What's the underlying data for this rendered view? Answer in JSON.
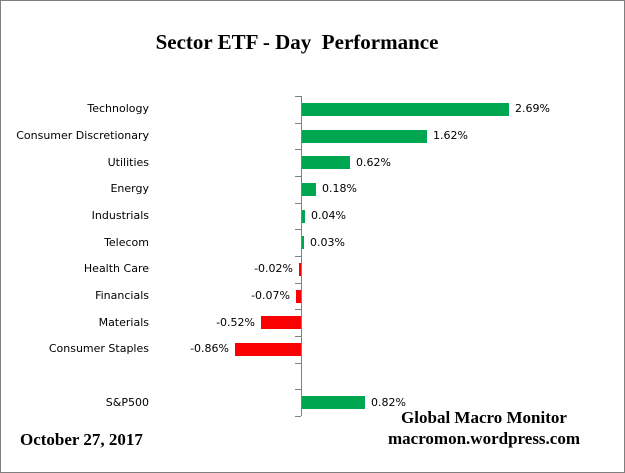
{
  "page": {
    "background": "#ffffff",
    "border_color": "#7f7f7f"
  },
  "chart_data": {
    "type": "bar",
    "orientation": "horizontal",
    "title": "Sector ETF - Day  Performance",
    "categories": [
      "Technology",
      "Consumer Discretionary",
      "Utilities",
      "Energy",
      "Industrials",
      "Telecom",
      "Health Care",
      "Financials",
      "Materials",
      "Consumer Staples",
      "",
      "S&P500"
    ],
    "values": [
      2.69,
      1.62,
      0.62,
      0.18,
      0.04,
      0.03,
      -0.02,
      -0.07,
      -0.52,
      -0.86,
      null,
      0.82
    ],
    "value_labels": [
      "2.69%",
      "1.62%",
      "0.62%",
      "0.18%",
      "0.04%",
      "0.03%",
      "-0.02%",
      "-0.07%",
      "-0.52%",
      "-0.86%",
      "",
      "0.82%"
    ],
    "xlabel": "",
    "ylabel": "",
    "x_axis_visible": false,
    "gridlines": false,
    "legend": "none",
    "xlim": [
      -1,
      3
    ],
    "blank_row_index": 10,
    "positive_color": "#00A650",
    "negative_color": "#FB0000",
    "axis_color": "#808080"
  },
  "footer": {
    "date": "October 27, 2017",
    "credit_line1": "Global Macro Monitor",
    "credit_line2": "macromon.wordpress.com"
  }
}
